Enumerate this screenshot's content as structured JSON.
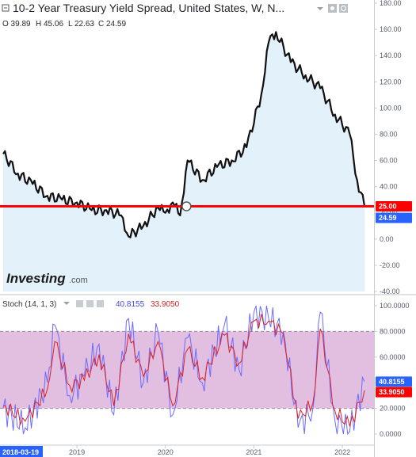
{
  "header": {
    "title": "10-2 Year Treasury Yield Spread, United States, W, N...",
    "ohlc": {
      "o": "O 39.89",
      "h": "H 45.06",
      "l": "L 22.63",
      "c": "C 24.59"
    }
  },
  "brand": {
    "name": "Investing",
    "suffix": ".com"
  },
  "colors": {
    "price_line": "#111111",
    "price_fill": "#e3f1fb",
    "hline": "#ff0000",
    "badge_blue": "#2962ff",
    "stoch_k": "#6b6bff",
    "stoch_d": "#e02020",
    "band": "#e2bfe0"
  },
  "chart_data": [
    {
      "type": "area",
      "name": "price-panel",
      "ylim": [
        -40,
        180
      ],
      "yticks": [
        "-40.00",
        "-20.00",
        "0.00",
        "20.00",
        "40.00",
        "60.00",
        "80.00",
        "100.00",
        "120.00",
        "140.00",
        "160.00",
        "180.00"
      ],
      "x": [
        "2018-03",
        "2018-05",
        "2018-07",
        "2018-09",
        "2018-11",
        "2019-01",
        "2019-03",
        "2019-05",
        "2019-07",
        "2019-08",
        "2019-10",
        "2019-12",
        "2020-01",
        "2020-02",
        "2020-03",
        "2020-04",
        "2020-06",
        "2020-08",
        "2020-10",
        "2020-12",
        "2021-02",
        "2021-03",
        "2021-04",
        "2021-06",
        "2021-08",
        "2021-10",
        "2021-12",
        "2022-02",
        "2022-03",
        "2022-04"
      ],
      "values": [
        65,
        50,
        42,
        33,
        30,
        28,
        22,
        22,
        18,
        2,
        10,
        24,
        20,
        28,
        18,
        60,
        45,
        55,
        60,
        70,
        110,
        150,
        158,
        135,
        125,
        115,
        95,
        80,
        45,
        25
      ],
      "hline": {
        "value": 25,
        "label": "25.00"
      },
      "last": {
        "value": 24.59,
        "label": "24.59"
      }
    },
    {
      "type": "line",
      "name": "stochastic-panel",
      "indicator_label": "Stoch (14, 1, 3)",
      "k_label": "40.8155",
      "d_label": "33.9050",
      "ylim": [
        -8,
        108
      ],
      "yticks": [
        "0.0000",
        "20.0000",
        "40.0000",
        "60.0000",
        "80.0000",
        "100.0000"
      ],
      "band": [
        20,
        80
      ],
      "series": [
        {
          "name": "40.8155",
          "x": [
            "2018-03",
            "2018-06",
            "2018-09",
            "2018-10",
            "2018-12",
            "2019-02",
            "2019-04",
            "2019-06",
            "2019-08",
            "2019-10",
            "2019-12",
            "2020-02",
            "2020-04",
            "2020-06",
            "2020-09",
            "2020-11",
            "2021-01",
            "2021-03",
            "2021-05",
            "2021-07",
            "2021-09",
            "2021-10",
            "2021-12",
            "2022-02",
            "2022-04"
          ],
          "values": [
            20,
            5,
            40,
            85,
            30,
            45,
            70,
            15,
            90,
            40,
            80,
            15,
            75,
            40,
            85,
            50,
            95,
            90,
            80,
            5,
            20,
            95,
            10,
            2,
            41
          ]
        },
        {
          "name": "33.9050",
          "x": [
            "2018-03",
            "2018-06",
            "2018-09",
            "2018-10",
            "2018-12",
            "2019-02",
            "2019-04",
            "2019-06",
            "2019-08",
            "2019-10",
            "2019-12",
            "2020-02",
            "2020-04",
            "2020-06",
            "2020-09",
            "2020-11",
            "2021-01",
            "2021-03",
            "2021-05",
            "2021-07",
            "2021-09",
            "2021-10",
            "2021-12",
            "2022-02",
            "2022-04"
          ],
          "values": [
            22,
            10,
            35,
            72,
            38,
            42,
            62,
            22,
            78,
            45,
            72,
            22,
            66,
            44,
            77,
            55,
            88,
            88,
            78,
            12,
            24,
            82,
            18,
            6,
            34
          ]
        }
      ]
    }
  ],
  "time_axis": {
    "start_label": "2018-03-19",
    "labels": [
      "2019",
      "2020",
      "2021",
      "2022"
    ],
    "label_x": [
      "2019-01",
      "2020-01",
      "2021-01",
      "2022-01"
    ]
  }
}
